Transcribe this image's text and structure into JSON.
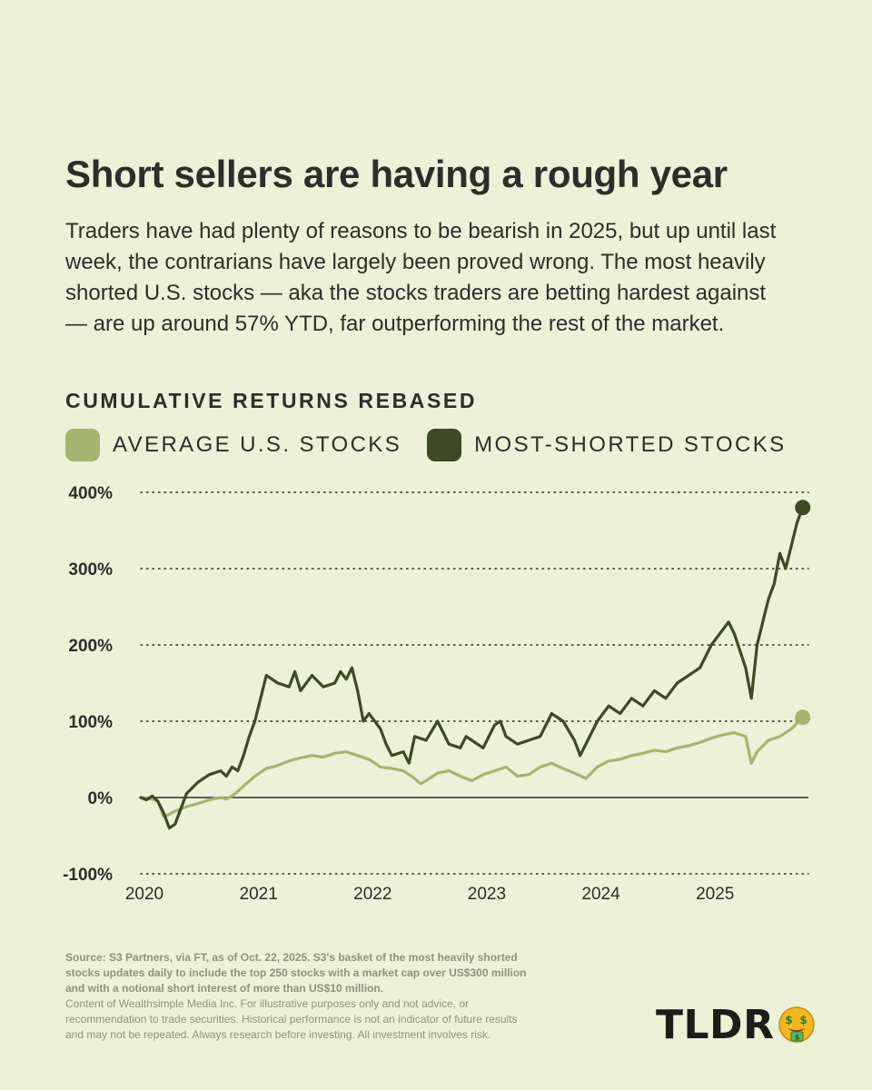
{
  "title": "Short sellers are having a rough year",
  "subtitle": "Traders have had plenty of reasons to be bearish in 2025, but up until last week, the contrarians have largely been proved wrong. The most heavily shorted U.S. stocks — aka the stocks traders are betting hardest against — are up around 57% YTD, far outperforming the rest of the market.",
  "chart_heading": "CUMULATIVE RETURNS REBASED",
  "legend": [
    {
      "label": "AVERAGE U.S. STOCKS",
      "color": "#a6b56e"
    },
    {
      "label": "MOST-SHORTED STOCKS",
      "color": "#3e4a25"
    }
  ],
  "chart_data": {
    "type": "line",
    "title": "CUMULATIVE RETURNS REBASED",
    "xlabel": "",
    "ylabel": "",
    "ylim": [
      -100,
      400
    ],
    "xlim": [
      2020.0,
      2025.85
    ],
    "yticks": [
      400,
      300,
      200,
      100,
      0,
      -100
    ],
    "ytick_labels": [
      "400%",
      "300%",
      "200%",
      "100%",
      "0%",
      "-100%"
    ],
    "xticks": [
      2020,
      2021,
      2022,
      2023,
      2024,
      2025
    ],
    "xtick_labels": [
      "2020",
      "2021",
      "2022",
      "2023",
      "2024",
      "2025"
    ],
    "grid": "horizontal dotted",
    "zero_line": true,
    "series": [
      {
        "name": "AVERAGE U.S. STOCKS",
        "color": "#a6b56e",
        "end_marker": true,
        "x": [
          2020.0,
          2020.1,
          2020.15,
          2020.2,
          2020.25,
          2020.3,
          2020.4,
          2020.5,
          2020.6,
          2020.7,
          2020.75,
          2020.8,
          2020.85,
          2020.9,
          2021.0,
          2021.1,
          2021.2,
          2021.3,
          2021.4,
          2021.5,
          2021.6,
          2021.7,
          2021.8,
          2021.9,
          2022.0,
          2022.1,
          2022.2,
          2022.3,
          2022.4,
          2022.45,
          2022.5,
          2022.6,
          2022.7,
          2022.8,
          2022.9,
          2023.0,
          2023.1,
          2023.2,
          2023.3,
          2023.4,
          2023.5,
          2023.6,
          2023.7,
          2023.8,
          2023.9,
          2024.0,
          2024.1,
          2024.2,
          2024.3,
          2024.4,
          2024.5,
          2024.6,
          2024.7,
          2024.8,
          2024.9,
          2025.0,
          2025.1,
          2025.2,
          2025.3,
          2025.35,
          2025.4,
          2025.5,
          2025.6,
          2025.7,
          2025.8
        ],
        "values": [
          0,
          -2,
          -5,
          -25,
          -22,
          -18,
          -12,
          -8,
          -3,
          0,
          -2,
          2,
          8,
          15,
          28,
          38,
          42,
          48,
          52,
          55,
          53,
          58,
          60,
          55,
          50,
          40,
          38,
          35,
          25,
          18,
          22,
          32,
          35,
          28,
          22,
          30,
          35,
          40,
          28,
          30,
          40,
          45,
          38,
          32,
          25,
          40,
          48,
          50,
          55,
          58,
          62,
          60,
          65,
          68,
          72,
          78,
          82,
          85,
          80,
          45,
          60,
          75,
          80,
          90,
          105
        ]
      },
      {
        "name": "MOST-SHORTED STOCKS",
        "color": "#3e4a25",
        "end_marker": true,
        "x": [
          2020.0,
          2020.05,
          2020.1,
          2020.15,
          2020.2,
          2020.25,
          2020.3,
          2020.35,
          2020.4,
          2020.5,
          2020.6,
          2020.7,
          2020.75,
          2020.8,
          2020.85,
          2020.9,
          2020.95,
          2021.0,
          2021.05,
          2021.1,
          2021.2,
          2021.3,
          2021.35,
          2021.4,
          2021.5,
          2021.6,
          2021.7,
          2021.75,
          2021.8,
          2021.85,
          2021.9,
          2021.95,
          2022.0,
          2022.1,
          2022.15,
          2022.2,
          2022.3,
          2022.35,
          2022.4,
          2022.5,
          2022.6,
          2022.7,
          2022.8,
          2022.85,
          2022.9,
          2023.0,
          2023.1,
          2023.15,
          2023.2,
          2023.3,
          2023.4,
          2023.5,
          2023.6,
          2023.7,
          2023.8,
          2023.85,
          2023.9,
          2024.0,
          2024.1,
          2024.2,
          2024.3,
          2024.4,
          2024.5,
          2024.6,
          2024.7,
          2024.8,
          2024.9,
          2025.0,
          2025.05,
          2025.1,
          2025.15,
          2025.2,
          2025.3,
          2025.35,
          2025.4,
          2025.5,
          2025.55,
          2025.6,
          2025.65,
          2025.7,
          2025.75,
          2025.8
        ],
        "values": [
          0,
          -3,
          2,
          -5,
          -20,
          -40,
          -35,
          -15,
          5,
          20,
          30,
          35,
          28,
          40,
          35,
          55,
          80,
          100,
          130,
          160,
          150,
          145,
          165,
          140,
          160,
          145,
          150,
          165,
          155,
          170,
          140,
          100,
          110,
          90,
          70,
          55,
          60,
          45,
          80,
          75,
          100,
          70,
          65,
          80,
          75,
          65,
          95,
          100,
          80,
          70,
          75,
          80,
          110,
          100,
          75,
          55,
          70,
          100,
          120,
          110,
          130,
          120,
          140,
          130,
          150,
          160,
          170,
          200,
          210,
          220,
          230,
          215,
          170,
          130,
          200,
          260,
          280,
          320,
          300,
          330,
          360,
          380
        ]
      }
    ]
  },
  "footnote": {
    "source": "Source: S3 Partners, via FT, as of Oct. 22, 2025. S3's basket of the most heavily shorted stocks updates daily to include the top 250 stocks with a market cap over US$300 million and with a notional short interest of more than US$10 million.",
    "disclaimer": "Content of Wealthsimple Media Inc. For illustrative purposes only and not advice, or recommendation to trade securities. Historical performance is not an indicator of future results and may not be repeated. Always research before investing. All investment involves risk."
  },
  "brand": {
    "name": "TLDR",
    "emoji": "money-mouth-face-icon",
    "emoji_color": "#f2b81f"
  }
}
